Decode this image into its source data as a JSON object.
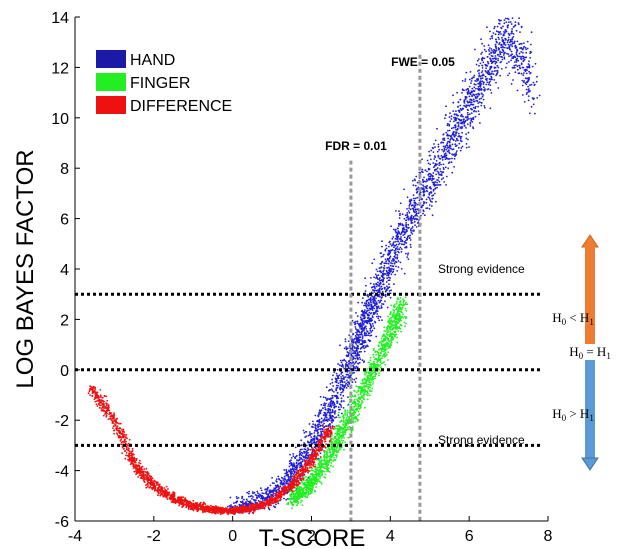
{
  "chart_data": {
    "type": "scatter",
    "xlabel": "T-SCORE",
    "ylabel": "LOG BAYES FACTOR",
    "xlim": [
      -4,
      8
    ],
    "ylim": [
      -6,
      14
    ],
    "xticks": [
      "-4",
      "-2",
      "0",
      "2",
      "4",
      "6",
      "8"
    ],
    "yticks": [
      "-6",
      "-4",
      "-2",
      "0",
      "2",
      "4",
      "6",
      "8",
      "10",
      "12",
      "14"
    ],
    "grid": false,
    "legend_position": "top-left",
    "series": [
      {
        "name": "HAND",
        "color": "#1f1fd6",
        "x": [
          0.0,
          1.0,
          1.5,
          2.0,
          2.5,
          3.0,
          3.3,
          3.6,
          4.0,
          4.5,
          5.0,
          5.5,
          6.0,
          6.5,
          7.0,
          7.6
        ],
        "y": [
          -5.5,
          -5.0,
          -4.2,
          -3.0,
          -1.5,
          0.3,
          1.5,
          2.7,
          4.3,
          6.0,
          7.5,
          9.0,
          10.5,
          12.0,
          13.5,
          11.2
        ]
      },
      {
        "name": "FINGER",
        "color": "#22ee22",
        "x": [
          1.5,
          2.0,
          2.5,
          3.0,
          3.5,
          4.0,
          4.3
        ],
        "y": [
          -5.2,
          -4.5,
          -3.3,
          -1.8,
          -0.2,
          1.5,
          2.5
        ]
      },
      {
        "name": "DIFFERENCE",
        "color": "#ee1111",
        "x": [
          -3.6,
          -3.0,
          -2.5,
          -2.0,
          -1.5,
          -1.0,
          -0.5,
          0.0,
          0.5,
          1.0,
          1.5,
          2.0,
          2.5
        ],
        "y": [
          -0.7,
          -2.0,
          -3.7,
          -4.6,
          -5.1,
          -5.4,
          -5.55,
          -5.6,
          -5.5,
          -5.2,
          -4.6,
          -3.6,
          -2.3
        ]
      }
    ],
    "reference_lines": {
      "horizontal": [
        3,
        0,
        -3
      ],
      "vertical": [
        {
          "x": 3.0,
          "label": "FDR = 0.01"
        },
        {
          "x": 4.75,
          "label": "FWE = 0.05"
        }
      ]
    },
    "annotations": {
      "strong_upper": "Strong evidence",
      "strong_lower": "Strong evidence",
      "h_less": {
        "base": "H",
        "s0": "0",
        "op": " < ",
        "s1": "1"
      },
      "h_equal": {
        "base": "H",
        "s0": "0",
        "op": " = ",
        "s1": "1"
      },
      "h_greater": {
        "base": "H",
        "s0": "0",
        "op": " > ",
        "s1": "1"
      }
    },
    "arrow_colors": {
      "up": "#ee7d31",
      "down": "#5b9bd5"
    }
  }
}
